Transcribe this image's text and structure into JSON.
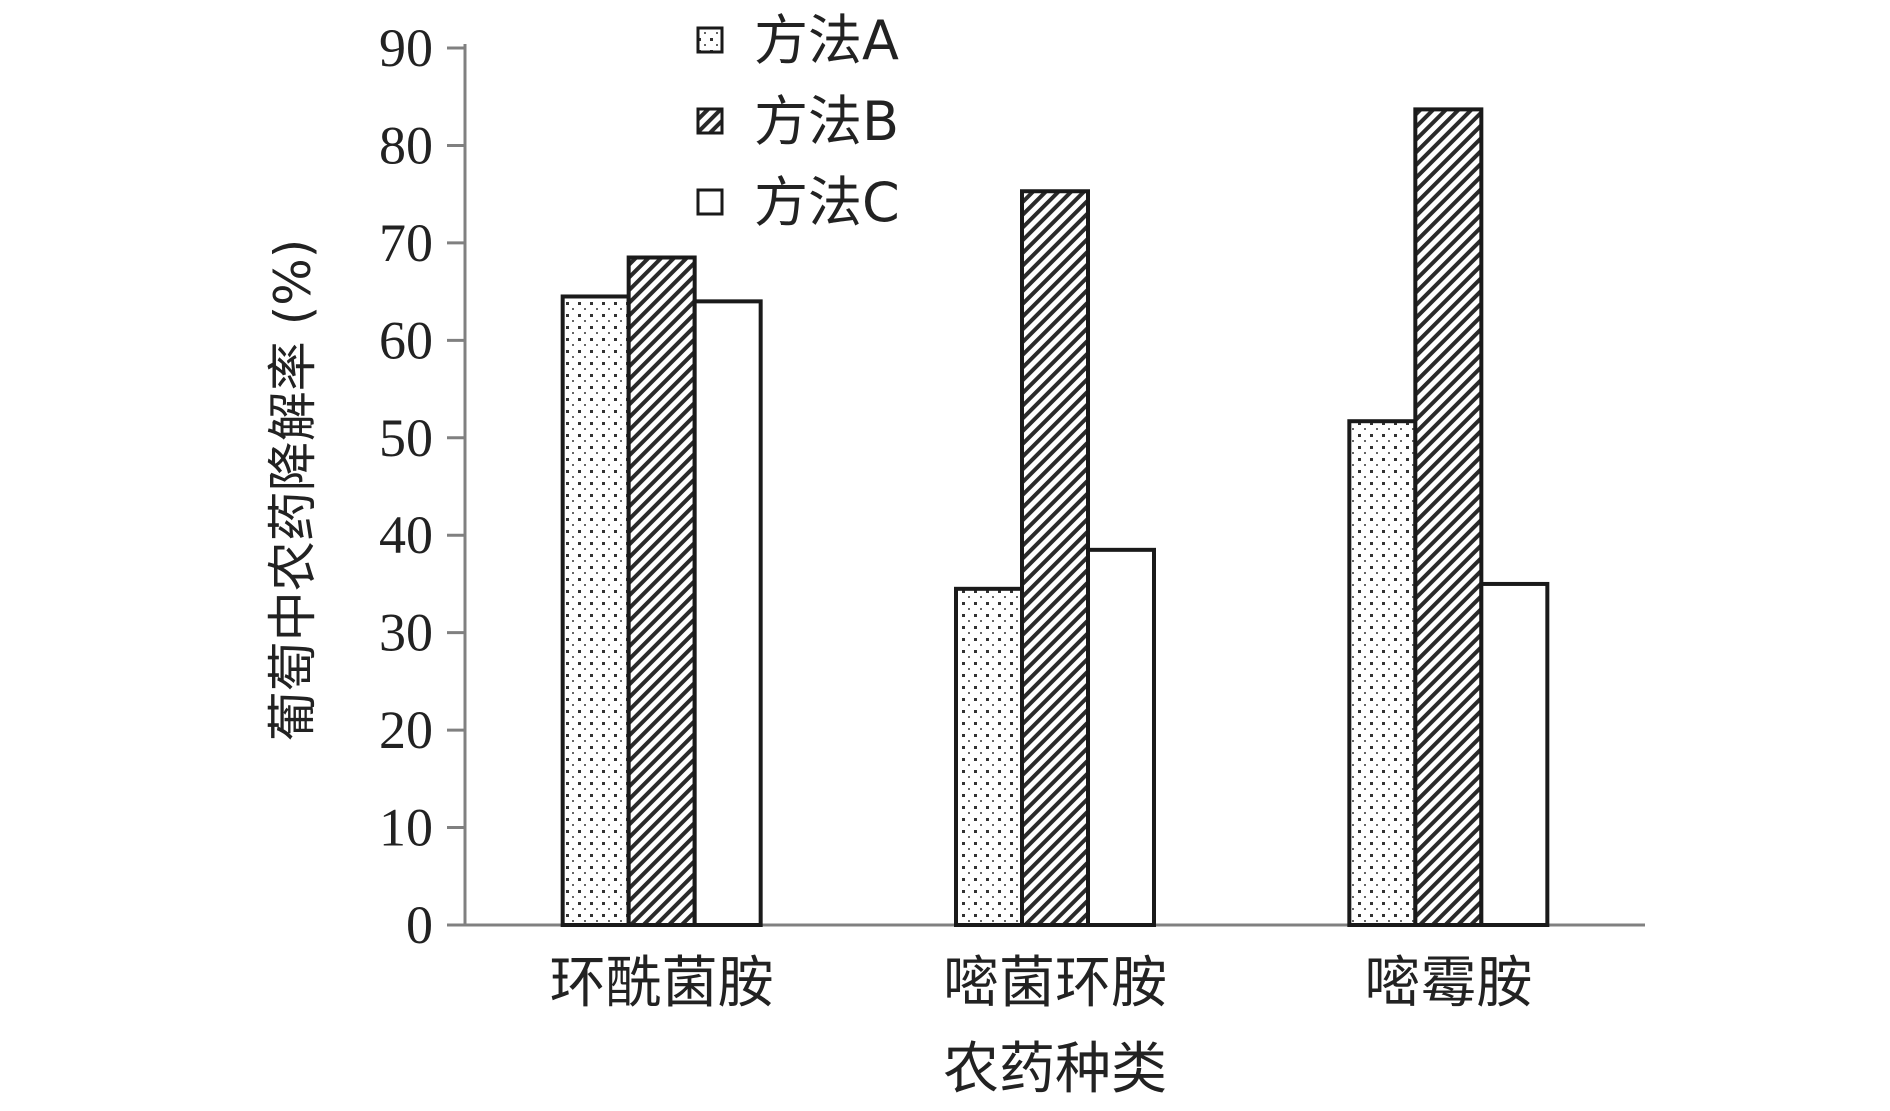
{
  "chart_data": {
    "type": "bar",
    "title": "",
    "xlabel": "农药种类",
    "ylabel": "葡萄中农药降解率 (%)",
    "categories": [
      "环酰菌胺",
      "嘧菌环胺",
      "嘧霉胺"
    ],
    "series": [
      {
        "name": "方法A",
        "values": [
          64.5,
          34.5,
          51.7
        ],
        "pattern": "dots"
      },
      {
        "name": "方法B",
        "values": [
          68.5,
          75.3,
          83.7
        ],
        "pattern": "diagonal-hatch"
      },
      {
        "name": "方法C",
        "values": [
          64.0,
          38.5,
          35.0
        ],
        "pattern": "plain"
      }
    ],
    "ylim": [
      0,
      90
    ],
    "yticks": [
      "0",
      "10",
      "20",
      "30",
      "40",
      "50",
      "60",
      "70",
      "80",
      "90"
    ],
    "grid": false,
    "legend_position": "top-center",
    "colors": {
      "bar_stroke": "#1a1a1a",
      "axis": "#808080",
      "text": "#222222"
    }
  }
}
